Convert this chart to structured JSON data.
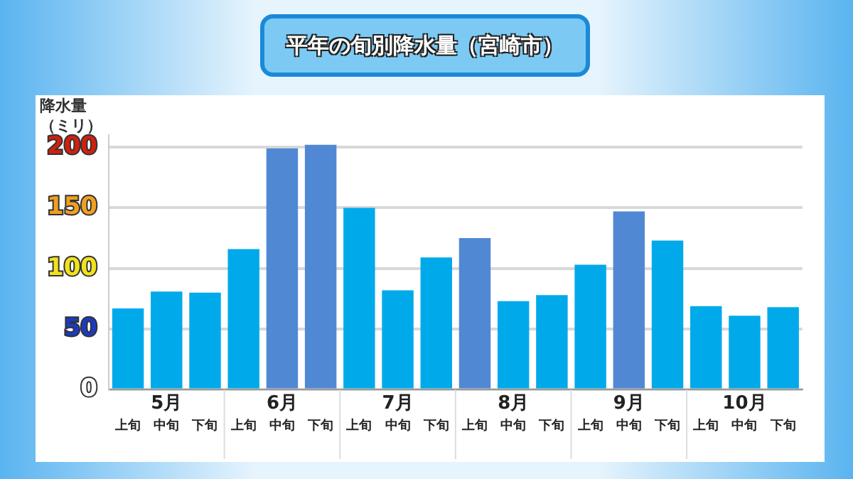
{
  "chart_data": {
    "type": "bar",
    "title": "平年の旬別降水量（宮崎市）",
    "ylabel": "降水量（ミリ）",
    "categories": [
      "上旬",
      "中旬",
      "下旬",
      "上旬",
      "中旬",
      "下旬",
      "上旬",
      "中旬",
      "下旬",
      "上旬",
      "中旬",
      "下旬",
      "上旬",
      "中旬",
      "下旬",
      "上旬",
      "中旬",
      "下旬"
    ],
    "values": [
      67,
      81,
      80,
      116,
      199,
      202,
      150,
      82,
      109,
      125,
      73,
      78,
      103,
      147,
      123,
      69,
      61,
      68
    ],
    "colors": [
      "#00aaea",
      "#00aaea",
      "#00aaea",
      "#00aaea",
      "#5088d4",
      "#5088d4",
      "#00aaea",
      "#00aaea",
      "#00aaea",
      "#5088d4",
      "#00aaea",
      "#00aaea",
      "#00aaea",
      "#5088d4",
      "#00aaea",
      "#00aaea",
      "#00aaea",
      "#00aaea"
    ],
    "annotations": [
      "5月",
      "6月",
      "7月",
      "8月",
      "9月",
      "10月"
    ],
    "ylim": [
      0,
      210
    ],
    "yticks": [
      0,
      50,
      100,
      150,
      200
    ],
    "grid": "y",
    "legend": false
  }
}
